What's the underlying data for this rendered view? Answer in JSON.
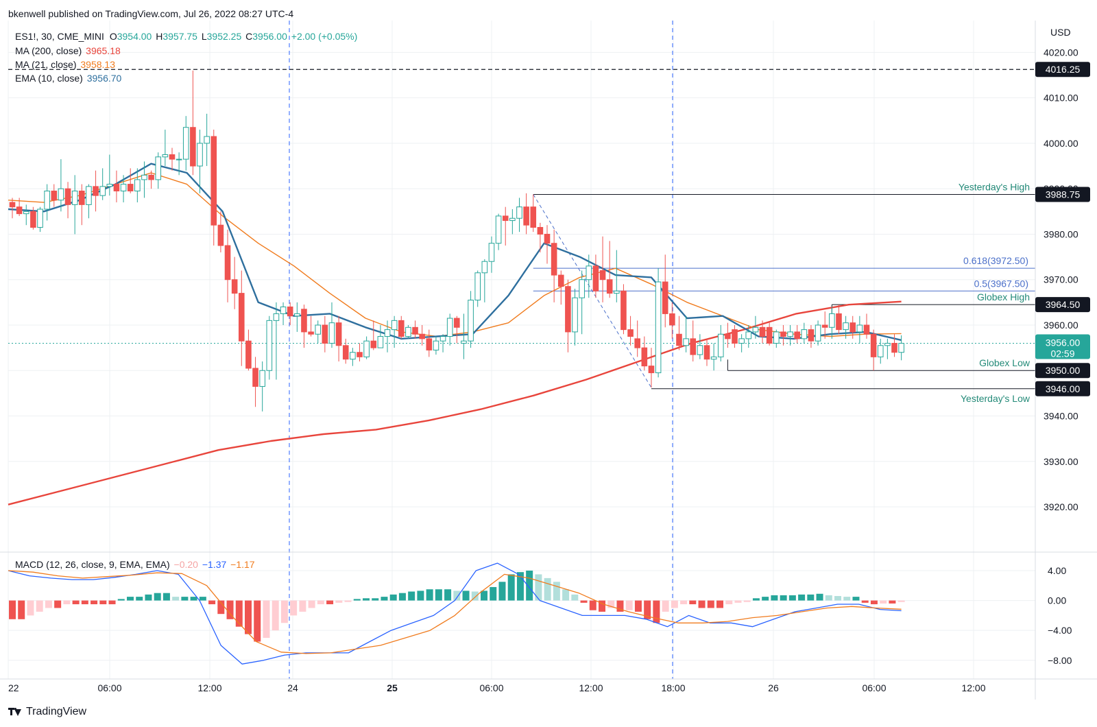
{
  "header": {
    "publisher": "bkenwell published on TradingView.com, Jul 26, 2022 08:27 UTC-4",
    "symbol": "ES1!, 30, CME_MINI",
    "ohlc": {
      "o_label": "O",
      "o": "3954.00",
      "h_label": "H",
      "h": "3957.75",
      "l_label": "L",
      "l": "3952.25",
      "c_label": "C",
      "c": "3956.00",
      "change": "+2.00 (+0.05%)"
    },
    "indicators": [
      {
        "label": "MA (200, close)",
        "value": "3965.18",
        "color": "#e8453c"
      },
      {
        "label": "MA (21, close)",
        "value": "3958.13",
        "color": "#f07b1d"
      },
      {
        "label": "EMA (10, close)",
        "value": "3956.70",
        "color": "#2e6f9e"
      }
    ],
    "macd": {
      "label": "MACD (12, 26, close, 9, EMA, EMA)",
      "hist": "−0.20",
      "macd": "−1.37",
      "signal": "−1.17"
    }
  },
  "brand": "TradingView",
  "chart_data": {
    "type": "candlestick",
    "currency": "USD",
    "price_axis": {
      "ticks": [
        4020,
        4010,
        4000,
        3990,
        3980,
        3970,
        3960,
        3950,
        3940,
        3930,
        3920
      ],
      "ylim": [
        3910.5,
        4027
      ]
    },
    "time_axis": {
      "labels": [
        "22",
        "06:00",
        "12:00",
        "24",
        "25",
        "06:00",
        "12:00",
        "18:00",
        "26",
        "06:00",
        "12:00"
      ],
      "bold": [
        "25"
      ]
    },
    "macd_axis": {
      "ticks": [
        "4.00",
        "0.00",
        "−4.00",
        "−8.00"
      ],
      "values": [
        4,
        0,
        -4,
        -8
      ],
      "ylim": [
        -10.5,
        6.2
      ]
    },
    "colors": {
      "up": "#26a69a",
      "down": "#ef5350",
      "ma200": "#e8453c",
      "ma21": "#f07b1d",
      "ema10": "#2e6f9e",
      "macd": "#2962ff",
      "signal": "#f07b1d",
      "fib": "#4a6fc9",
      "level": "#131722",
      "text_green": "#238a78",
      "session": "#2962ff"
    },
    "candles": [
      {
        "o": 3987.0,
        "h": 3988.0,
        "l": 3983.5,
        "c": 3986.0
      },
      {
        "o": 3986.0,
        "h": 3988.0,
        "l": 3984.0,
        "c": 3984.5
      },
      {
        "o": 3984.5,
        "h": 3986.5,
        "l": 3982.0,
        "c": 3985.0
      },
      {
        "o": 3985.0,
        "h": 3986.0,
        "l": 3981.0,
        "c": 3981.5
      },
      {
        "o": 3981.5,
        "h": 3986.0,
        "l": 3980.5,
        "c": 3985.5
      },
      {
        "o": 3985.5,
        "h": 3991.0,
        "l": 3983.0,
        "c": 3989.5
      },
      {
        "o": 3989.5,
        "h": 3991.0,
        "l": 3986.0,
        "c": 3987.5
      },
      {
        "o": 3987.5,
        "h": 3996.5,
        "l": 3985.0,
        "c": 3990.0
      },
      {
        "o": 3990.0,
        "h": 3991.5,
        "l": 3983.5,
        "c": 3986.5
      },
      {
        "o": 3986.5,
        "h": 3993.0,
        "l": 3980.0,
        "c": 3989.5
      },
      {
        "o": 3989.5,
        "h": 3991.0,
        "l": 3982.0,
        "c": 3986.5
      },
      {
        "o": 3986.5,
        "h": 3991.0,
        "l": 3983.5,
        "c": 3990.5
      },
      {
        "o": 3990.5,
        "h": 3994.0,
        "l": 3985.0,
        "c": 3988.5
      },
      {
        "o": 3988.5,
        "h": 3994.5,
        "l": 3987.5,
        "c": 3990.5
      },
      {
        "o": 3990.5,
        "h": 3997.5,
        "l": 3988.5,
        "c": 3991.0
      },
      {
        "o": 3991.0,
        "h": 3994.0,
        "l": 3987.0,
        "c": 3989.5
      },
      {
        "o": 3989.5,
        "h": 3993.0,
        "l": 3987.0,
        "c": 3991.0
      },
      {
        "o": 3991.0,
        "h": 3994.5,
        "l": 3989.0,
        "c": 3989.5
      },
      {
        "o": 3989.5,
        "h": 3994.5,
        "l": 3987.0,
        "c": 3992.0
      },
      {
        "o": 3992.0,
        "h": 3996.0,
        "l": 3988.0,
        "c": 3993.0
      },
      {
        "o": 3993.0,
        "h": 3994.0,
        "l": 3990.0,
        "c": 3992.0
      },
      {
        "o": 3992.0,
        "h": 3998.0,
        "l": 3990.0,
        "c": 3997.0
      },
      {
        "o": 3997.0,
        "h": 4003.0,
        "l": 3995.0,
        "c": 3997.5
      },
      {
        "o": 3997.5,
        "h": 3999.0,
        "l": 3994.0,
        "c": 3996.5
      },
      {
        "o": 3996.5,
        "h": 3998.0,
        "l": 3993.0,
        "c": 3996.5
      },
      {
        "o": 3996.5,
        "h": 4006.0,
        "l": 3994.0,
        "c": 4003.5
      },
      {
        "o": 4003.5,
        "h": 4016.0,
        "l": 3993.0,
        "c": 3995.0
      },
      {
        "o": 3995.0,
        "h": 4003.0,
        "l": 3989.0,
        "c": 4000.0
      },
      {
        "o": 4000.0,
        "h": 4006.5,
        "l": 3995.0,
        "c": 4001.5
      },
      {
        "o": 4001.5,
        "h": 4003.0,
        "l": 3977.5,
        "c": 3982.0
      },
      {
        "o": 3982.0,
        "h": 3985.0,
        "l": 3976.0,
        "c": 3977.5
      },
      {
        "o": 3977.5,
        "h": 3981.0,
        "l": 3965.0,
        "c": 3970.0
      },
      {
        "o": 3970.0,
        "h": 3975.0,
        "l": 3963.5,
        "c": 3967.0
      },
      {
        "o": 3967.0,
        "h": 3972.0,
        "l": 3951.0,
        "c": 3956.5
      },
      {
        "o": 3956.5,
        "h": 3959.0,
        "l": 3950.0,
        "c": 3950.5
      },
      {
        "o": 3950.5,
        "h": 3953.0,
        "l": 3942.0,
        "c": 3946.5
      },
      {
        "o": 3946.5,
        "h": 3952.0,
        "l": 3941.0,
        "c": 3950.0
      },
      {
        "o": 3950.0,
        "h": 3962.0,
        "l": 3948.0,
        "c": 3961.0
      },
      {
        "o": 3961.0,
        "h": 3965.0,
        "l": 3948.0,
        "c": 3962.5
      },
      {
        "o": 3962.5,
        "h": 3965.0,
        "l": 3960.0,
        "c": 3964.0
      },
      {
        "o": 3964.0,
        "h": 3965.0,
        "l": 3960.0,
        "c": 3962.0
      },
      {
        "o": 3962.0,
        "h": 3965.0,
        "l": 3958.5,
        "c": 3962.5
      },
      {
        "o": 3963.5,
        "h": 3964.5,
        "l": 3955.0,
        "c": 3958.5
      },
      {
        "o": 3958.5,
        "h": 3962.0,
        "l": 3957.5,
        "c": 3958.0
      },
      {
        "o": 3958.0,
        "h": 3961.0,
        "l": 3956.0,
        "c": 3960.0
      },
      {
        "o": 3960.0,
        "h": 3962.0,
        "l": 3954.0,
        "c": 3956.0
      },
      {
        "o": 3956.0,
        "h": 3965.0,
        "l": 3955.0,
        "c": 3960.5
      },
      {
        "o": 3960.5,
        "h": 3962.0,
        "l": 3952.0,
        "c": 3955.5
      },
      {
        "o": 3955.5,
        "h": 3957.0,
        "l": 3951.5,
        "c": 3952.5
      },
      {
        "o": 3952.5,
        "h": 3955.0,
        "l": 3951.0,
        "c": 3954.0
      },
      {
        "o": 3954.0,
        "h": 3956.0,
        "l": 3952.0,
        "c": 3953.0
      },
      {
        "o": 3953.0,
        "h": 3957.5,
        "l": 3952.5,
        "c": 3956.5
      },
      {
        "o": 3956.5,
        "h": 3961.0,
        "l": 3954.5,
        "c": 3955.0
      },
      {
        "o": 3955.0,
        "h": 3960.0,
        "l": 3955.0,
        "c": 3957.5
      },
      {
        "o": 3957.5,
        "h": 3961.0,
        "l": 3954.0,
        "c": 3959.0
      },
      {
        "o": 3959.0,
        "h": 3962.0,
        "l": 3955.0,
        "c": 3961.0
      },
      {
        "o": 3961.0,
        "h": 3962.0,
        "l": 3957.0,
        "c": 3957.5
      },
      {
        "o": 3957.5,
        "h": 3960.0,
        "l": 3957.0,
        "c": 3959.5
      },
      {
        "o": 3959.5,
        "h": 3961.0,
        "l": 3957.0,
        "c": 3958.0
      },
      {
        "o": 3958.0,
        "h": 3960.0,
        "l": 3955.5,
        "c": 3957.0
      },
      {
        "o": 3957.0,
        "h": 3959.0,
        "l": 3953.0,
        "c": 3954.5
      },
      {
        "o": 3954.5,
        "h": 3957.5,
        "l": 3953.5,
        "c": 3956.5
      },
      {
        "o": 3956.5,
        "h": 3958.0,
        "l": 3954.0,
        "c": 3957.5
      },
      {
        "o": 3957.5,
        "h": 3962.5,
        "l": 3955.5,
        "c": 3961.5
      },
      {
        "o": 3961.5,
        "h": 3962.0,
        "l": 3956.0,
        "c": 3959.5
      },
      {
        "o": 3956.0,
        "h": 3962.5,
        "l": 3952.5,
        "c": 3956.5
      },
      {
        "o": 3956.5,
        "h": 3967.5,
        "l": 3955.0,
        "c": 3965.5
      },
      {
        "o": 3965.5,
        "h": 3972.0,
        "l": 3964.0,
        "c": 3971.5
      },
      {
        "o": 3971.5,
        "h": 3974.5,
        "l": 3965.0,
        "c": 3974.0
      },
      {
        "o": 3974.0,
        "h": 3979.5,
        "l": 3971.5,
        "c": 3978.0
      },
      {
        "o": 3978.0,
        "h": 3984.5,
        "l": 3976.5,
        "c": 3984.0
      },
      {
        "o": 3984.0,
        "h": 3986.0,
        "l": 3977.5,
        "c": 3983.0
      },
      {
        "o": 3983.0,
        "h": 3985.5,
        "l": 3980.0,
        "c": 3983.5
      },
      {
        "o": 3983.5,
        "h": 3988.0,
        "l": 3980.5,
        "c": 3986.0
      },
      {
        "o": 3986.0,
        "h": 3989.0,
        "l": 3980.0,
        "c": 3982.0
      },
      {
        "o": 3986.0,
        "h": 3988.75,
        "l": 3980.5,
        "c": 3981.5
      },
      {
        "o": 3981.5,
        "h": 3982.5,
        "l": 3976.0,
        "c": 3980.0
      },
      {
        "o": 3980.0,
        "h": 3982.0,
        "l": 3973.5,
        "c": 3978.0
      },
      {
        "o": 3978.0,
        "h": 3981.0,
        "l": 3965.0,
        "c": 3971.0
      },
      {
        "o": 3971.0,
        "h": 3972.0,
        "l": 3964.5,
        "c": 3968.5
      },
      {
        "o": 3968.5,
        "h": 3970.0,
        "l": 3954.0,
        "c": 3958.5
      },
      {
        "o": 3958.5,
        "h": 3968.0,
        "l": 3955.5,
        "c": 3966.0
      },
      {
        "o": 3966.0,
        "h": 3972.0,
        "l": 3958.0,
        "c": 3970.0
      },
      {
        "o": 3970.0,
        "h": 3975.5,
        "l": 3966.0,
        "c": 3973.0
      },
      {
        "o": 3973.0,
        "h": 3975.5,
        "l": 3966.0,
        "c": 3967.5
      },
      {
        "o": 3972.0,
        "h": 3979.5,
        "l": 3965.0,
        "c": 3970.0
      },
      {
        "o": 3970.0,
        "h": 3978.5,
        "l": 3966.0,
        "c": 3967.0
      },
      {
        "o": 3967.0,
        "h": 3976.5,
        "l": 3965.0,
        "c": 3967.5
      },
      {
        "o": 3967.5,
        "h": 3969.0,
        "l": 3958.0,
        "c": 3959.0
      },
      {
        "o": 3959.0,
        "h": 3962.0,
        "l": 3955.5,
        "c": 3957.5
      },
      {
        "o": 3957.0,
        "h": 3961.0,
        "l": 3953.0,
        "c": 3955.0
      },
      {
        "o": 3955.0,
        "h": 3957.5,
        "l": 3950.0,
        "c": 3951.0
      },
      {
        "o": 3951.0,
        "h": 3955.0,
        "l": 3946.25,
        "c": 3949.5
      },
      {
        "o": 3949.5,
        "h": 3972.5,
        "l": 3948.5,
        "c": 3969.5
      },
      {
        "o": 3969.5,
        "h": 3975.5,
        "l": 3959.5,
        "c": 3962.5
      },
      {
        "o": 3962.5,
        "h": 3965.0,
        "l": 3957.0,
        "c": 3960.0
      },
      {
        "o": 3958.0,
        "h": 3962.0,
        "l": 3954.5,
        "c": 3955.5
      },
      {
        "o": 3955.5,
        "h": 3962.0,
        "l": 3954.0,
        "c": 3957.0
      },
      {
        "o": 3957.0,
        "h": 3961.0,
        "l": 3952.0,
        "c": 3953.5
      },
      {
        "o": 3953.5,
        "h": 3958.0,
        "l": 3952.5,
        "c": 3955.5
      },
      {
        "o": 3955.5,
        "h": 3957.0,
        "l": 3951.0,
        "c": 3952.5
      },
      {
        "o": 3952.5,
        "h": 3956.0,
        "l": 3950.0,
        "c": 3953.0
      },
      {
        "o": 3953.0,
        "h": 3960.0,
        "l": 3952.0,
        "c": 3958.0
      },
      {
        "o": 3958.0,
        "h": 3960.5,
        "l": 3955.0,
        "c": 3957.0
      },
      {
        "o": 3959.0,
        "h": 3960.0,
        "l": 3955.0,
        "c": 3956.0
      },
      {
        "o": 3956.0,
        "h": 3958.0,
        "l": 3954.0,
        "c": 3957.0
      },
      {
        "o": 3957.0,
        "h": 3960.0,
        "l": 3955.0,
        "c": 3958.5
      },
      {
        "o": 3958.5,
        "h": 3962.0,
        "l": 3957.0,
        "c": 3959.5
      },
      {
        "o": 3959.5,
        "h": 3961.0,
        "l": 3956.0,
        "c": 3957.5
      },
      {
        "o": 3959.5,
        "h": 3960.5,
        "l": 3955.5,
        "c": 3956.0
      },
      {
        "o": 3956.0,
        "h": 3959.0,
        "l": 3955.0,
        "c": 3958.5
      },
      {
        "o": 3958.5,
        "h": 3960.0,
        "l": 3955.5,
        "c": 3957.5
      },
      {
        "o": 3957.5,
        "h": 3960.0,
        "l": 3955.5,
        "c": 3958.5
      },
      {
        "o": 3958.5,
        "h": 3960.0,
        "l": 3956.0,
        "c": 3957.0
      },
      {
        "o": 3957.0,
        "h": 3960.5,
        "l": 3956.0,
        "c": 3959.0
      },
      {
        "o": 3959.0,
        "h": 3960.0,
        "l": 3955.0,
        "c": 3956.5
      },
      {
        "o": 3956.5,
        "h": 3961.0,
        "l": 3955.5,
        "c": 3960.0
      },
      {
        "o": 3960.0,
        "h": 3963.0,
        "l": 3957.0,
        "c": 3959.5
      },
      {
        "o": 3959.5,
        "h": 3964.0,
        "l": 3957.0,
        "c": 3962.5
      },
      {
        "o": 3962.5,
        "h": 3964.5,
        "l": 3958.0,
        "c": 3959.0
      },
      {
        "o": 3959.0,
        "h": 3962.0,
        "l": 3957.0,
        "c": 3960.5
      },
      {
        "o": 3960.5,
        "h": 3962.0,
        "l": 3957.0,
        "c": 3958.5
      },
      {
        "o": 3958.5,
        "h": 3962.0,
        "l": 3956.0,
        "c": 3960.0
      },
      {
        "o": 3960.0,
        "h": 3962.5,
        "l": 3957.0,
        "c": 3958.0
      },
      {
        "o": 3958.0,
        "h": 3959.0,
        "l": 3950.0,
        "c": 3953.0
      },
      {
        "o": 3953.0,
        "h": 3957.0,
        "l": 3951.5,
        "c": 3955.5
      },
      {
        "o": 3955.5,
        "h": 3957.0,
        "l": 3952.5,
        "c": 3956.0
      },
      {
        "o": 3956.0,
        "h": 3958.0,
        "l": 3953.0,
        "c": 3954.0
      },
      {
        "o": 3954.0,
        "h": 3957.75,
        "l": 3952.25,
        "c": 3956.0
      }
    ],
    "ma200": [
      3920.5,
      3923.5,
      3926.5,
      3929.5,
      3932.5,
      3934.5,
      3936.0,
      3937.0,
      3939.0,
      3941.5,
      3944.5,
      3948.0,
      3952.0,
      3956.0,
      3959.0,
      3962.5,
      3964.5,
      3965.18
    ],
    "ma21": [
      3987.5,
      3987.0,
      3988.5,
      3991.0,
      3993.5,
      3991.0,
      3984.0,
      3978.0,
      3973.0,
      3967.0,
      3961.5,
      3958.5,
      3957.5,
      3958.5,
      3960.5,
      3966.5,
      3970.5,
      3972.5,
      3969.0,
      3965.0,
      3962.0,
      3959.0,
      3958.0,
      3957.5,
      3958.0,
      3958.13
    ],
    "ema10": [
      3985.5,
      3985.0,
      3987.5,
      3991.0,
      3995.5,
      3993.5,
      3985.0,
      3965.0,
      3962.0,
      3962.5,
      3959.5,
      3957.0,
      3957.5,
      3958.0,
      3966.5,
      3978.0,
      3975.0,
      3971.0,
      3970.5,
      3961.5,
      3962.0,
      3957.5,
      3957.0,
      3958.0,
      3958.5,
      3956.7
    ],
    "macd_hist": [
      -2.5,
      -2.5,
      -2.0,
      -1.5,
      -1.0,
      -1.0,
      -0.5,
      -0.5,
      -0.5,
      -0.5,
      -0.5,
      -0.5,
      0.2,
      0.5,
      0.5,
      0.8,
      1.0,
      1.0,
      0.5,
      0.5,
      0.5,
      0.5,
      -0.5,
      -1.8,
      -2.5,
      -3.5,
      -4.5,
      -5.5,
      -5.0,
      -4.0,
      -3.0,
      -2.0,
      -1.5,
      -1.0,
      -0.5,
      -0.5,
      -0.3,
      -0.2,
      0.2,
      0.3,
      0.3,
      0.5,
      0.8,
      1.0,
      1.2,
      1.3,
      1.5,
      1.5,
      1.5,
      1.3,
      1.3,
      1.2,
      1.3,
      1.8,
      2.5,
      3.5,
      3.8,
      4.0,
      3.5,
      3.0,
      2.5,
      1.5,
      0.8,
      -0.3,
      -1.3,
      -1.5,
      -1.0,
      -1.5,
      -1.3,
      -1.5,
      -2.5,
      -3.0,
      -1.5,
      -1.0,
      -0.5,
      -0.5,
      -1.0,
      -1.0,
      -1.0,
      -0.5,
      -0.3,
      -0.2,
      0.3,
      0.5,
      0.7,
      0.7,
      0.7,
      0.8,
      0.8,
      0.9,
      0.7,
      0.6,
      0.5,
      0.5,
      -0.3,
      -0.5,
      -0.4,
      -0.4,
      -0.2
    ],
    "macd_line": [
      4.0,
      3.3,
      3.0,
      2.8,
      2.8,
      3.1,
      3.5,
      4.0,
      3.5,
      0.0,
      -6.0,
      -8.5,
      -8.0,
      -7.3,
      -7.0,
      -7.0,
      -7.0,
      -5.5,
      -4.0,
      -3.0,
      -2.0,
      0.0,
      4.0,
      5.0,
      3.5,
      0.0,
      -1.0,
      -2.0,
      -2.0,
      -2.0,
      -2.5,
      -3.5,
      -2.0,
      -3.0,
      -3.0,
      -3.5,
      -2.5,
      -1.5,
      -1.0,
      -0.5,
      -0.5,
      -1.2,
      -1.37
    ],
    "signal_line": [
      4.0,
      3.8,
      3.3,
      3.0,
      3.2,
      3.4,
      3.7,
      3.6,
      2.0,
      -2.0,
      -5.5,
      -6.9,
      -7.1,
      -7.0,
      -6.5,
      -6.0,
      -5.0,
      -4.0,
      -2.0,
      1.0,
      3.5,
      3.0,
      2.0,
      1.0,
      -0.5,
      -1.5,
      -2.3,
      -3.0,
      -3.0,
      -2.8,
      -2.3,
      -2.0,
      -1.5,
      -1.0,
      -0.8,
      -1.0,
      -1.17
    ],
    "levels": [
      {
        "label": "Yesterday's High",
        "value": "3988.75"
      },
      {
        "label": "Globex High",
        "value": "3964.50"
      },
      {
        "label": "Globex Low",
        "value": "3950.00"
      },
      {
        "label": "Yesterday's Low",
        "value": "3946.00"
      }
    ],
    "fib_levels": [
      {
        "label": "0.618(3972.50)",
        "value": 3972.5
      },
      {
        "label": "0.5(3967.50)",
        "value": 3967.5
      }
    ],
    "dashed_level": {
      "value": "4016.25"
    },
    "last_price": {
      "value": "3956.00",
      "countdown": "02:59"
    }
  }
}
